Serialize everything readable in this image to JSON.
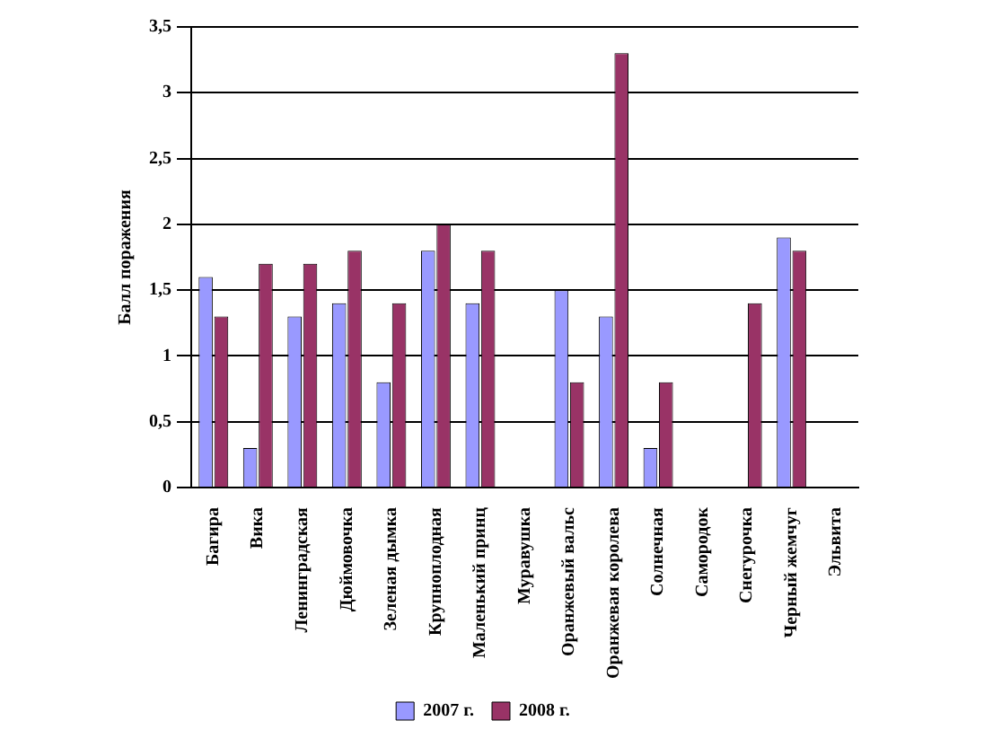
{
  "chart_data": {
    "type": "bar",
    "ylabel": "Балл поражения",
    "categories": [
      "Багира",
      "Вика",
      "Ленинградская",
      "Дюймовочка",
      "Зеленая дымка",
      "Крупноплодная",
      "Маленький принц",
      "Муравушка",
      "Оранжевый вальс",
      "Оранжевая королева",
      "Солнечная",
      "Самородок",
      "Снегурочка",
      "Черный жемчуг",
      "Эльвита"
    ],
    "series": [
      {
        "name": "2007 г.",
        "color": "#9999ff",
        "values": [
          1.6,
          0.3,
          1.3,
          1.4,
          0.8,
          1.8,
          1.4,
          0,
          1.5,
          1.3,
          0.3,
          0,
          0,
          1.9,
          0
        ]
      },
      {
        "name": "2008 г.",
        "color": "#993366",
        "values": [
          1.3,
          1.7,
          1.7,
          1.8,
          1.4,
          2.0,
          1.8,
          0,
          0.8,
          3.3,
          0.8,
          0,
          1.4,
          1.8,
          0
        ]
      }
    ],
    "ylim": [
      0,
      3.5
    ],
    "yticks": [
      0,
      {
        "value": 0.5,
        "label": "0,5"
      },
      1,
      {
        "value": 1.5,
        "label": "1,5"
      },
      2,
      {
        "value": 2.5,
        "label": "2,5"
      },
      3,
      {
        "value": 3.5,
        "label": "3,5"
      }
    ],
    "grid": "y",
    "legend": "bottom"
  }
}
